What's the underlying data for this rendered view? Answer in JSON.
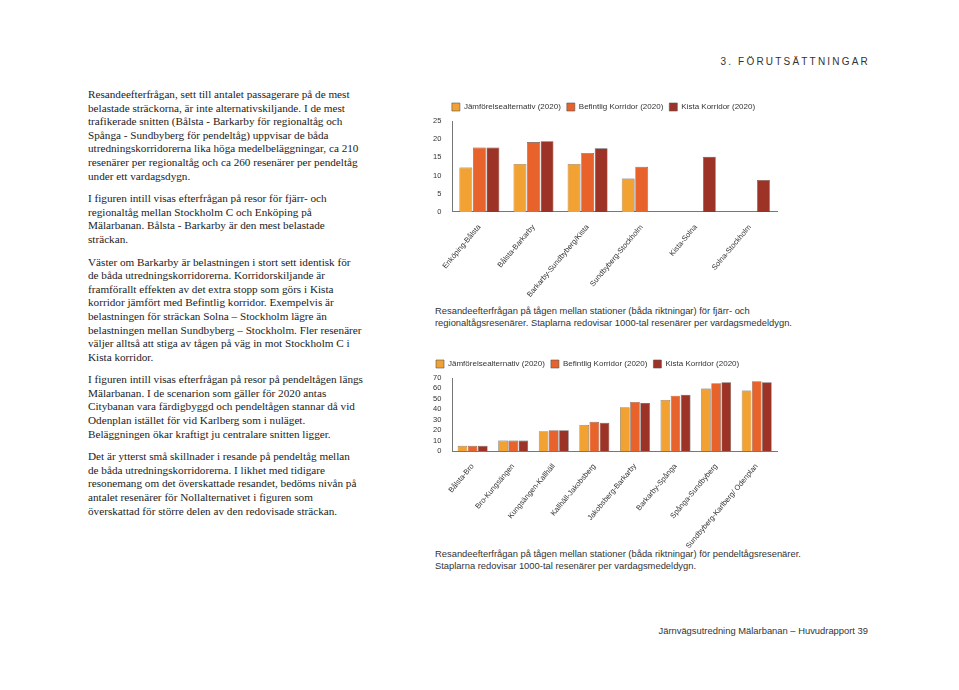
{
  "header": "3. FÖRUTSÄTTNINGAR",
  "paragraphs": [
    "Resandeefterfrågan, sett till antalet passagerare på de mest belastade sträckorna, är inte alternativskiljande. I de mest trafikerade snitten (Bålsta - Barkarby för regionaltåg och Spånga - Sundbyberg för pendeltåg) uppvisar de båda utredningskorridorerna lika höga medelbeläggningar, ca 210 resenärer per regionaltåg och ca 260 resenärer per pendeltåg under ett vardagsdygn.",
    "I figuren intill visas efterfrågan på resor för fjärr- och regionaltåg mellan Stockholm C och Enköping på Mälarbanan. Bålsta - Barkarby är den mest belastade sträckan.",
    "Väster om Barkarby är belastningen i stort sett identisk för de båda utredningskorridorerna. Korridorskiljande är framförallt effekten av det extra stopp som görs i Kista korridor jämfört med Befintlig korridor. Exempelvis är belastningen för sträckan Solna – Stockholm lägre än belastningen mellan Sundbyberg – Stockholm. Fler resenärer väljer alltså att stiga av tågen på väg in mot Stockholm C i Kista korridor.",
    "I figuren intill visas efterfrågan på resor på pendeltågen längs Mälarbanan. I de scenarion som gäller för 2020 antas Citybanan vara färdigbyggd och pendeltågen stannar då vid Odenplan istället för vid Karlberg som i nuläget. Beläggningen ökar kraftigt ju centralare snitten ligger.",
    "Det är ytterst små skillnader i resande på pendeltåg mellan de båda utredningskorridorerna. I likhet med tidigare resonemang om det överskattade resandet, bedöms nivån på antalet resenärer för Nollalternativet i figuren som överskattad för större delen av den redovisade sträckan."
  ],
  "chart_data": [
    {
      "type": "bar",
      "caption": "Resandeefterfrågan på tågen mellan stationer (båda riktningar) för fjärr- och regionaltågsresenärer. Staplarna redovisar 1000-tal resenärer per vardagsmedeldygn.",
      "categories": [
        "Enköping-Bålsta",
        "Bålsta-Barkarby",
        "Barkarby-Sundbyberg/Kista",
        "Sundbyberg-Stockholm",
        "Kista-Solna",
        "Solna-Stockholm"
      ],
      "series": [
        {
          "name": "Jämförelsealternativ (2020)",
          "color": "#f2a233",
          "values": [
            12.2,
            13.2,
            13.2,
            9.2,
            null,
            null
          ]
        },
        {
          "name": "Befintlig Korridor (2020)",
          "color": "#e8622b",
          "values": [
            17.7,
            19.2,
            16.2,
            12.4,
            null,
            null
          ]
        },
        {
          "name": "Kista Korridor (2020)",
          "color": "#9c3326",
          "values": [
            17.7,
            19.4,
            17.5,
            null,
            15.2,
            8.8
          ]
        }
      ],
      "ylim": [
        0,
        25
      ],
      "yticks": [
        0,
        5,
        10,
        15,
        20,
        25
      ],
      "grid": false,
      "legend": "top"
    },
    {
      "type": "bar",
      "caption": "Resandeefterfrågan på tågen mellan stationer (båda riktningar) för pendeltågsresenärer. Staplarna redovisar 1000-tal resenärer per vardagsmedeldygn.",
      "categories": [
        "Bålsta-Bro",
        "Bro-Kungsängen",
        "Kungsängen-Kallhäll",
        "Kallhäll-Jakobsberg",
        "Jakobsberg-Barkarby",
        "Barkarby-Spånga",
        "Spånga-Sundbyberg",
        "Sundbyberg-Karlberg/ Odenplan"
      ],
      "series": [
        {
          "name": "Jämförelsealternativ (2020)",
          "color": "#f2a233",
          "values": [
            5,
            10,
            19,
            25,
            42,
            49,
            60,
            58
          ]
        },
        {
          "name": "Befintlig Korridor (2020)",
          "color": "#e8622b",
          "values": [
            5,
            10,
            20,
            28,
            47,
            53,
            65,
            67
          ]
        },
        {
          "name": "Kista Korridor (2020)",
          "color": "#9c3326",
          "values": [
            5,
            10,
            20,
            27,
            46,
            54,
            66,
            66
          ]
        }
      ],
      "ylim": [
        0,
        70
      ],
      "yticks": [
        0,
        10,
        20,
        30,
        40,
        50,
        60,
        70
      ],
      "grid": false,
      "legend": "top left"
    }
  ],
  "footer": "Järnvägsutredning Mälarbanan – Huvudrapport  39"
}
